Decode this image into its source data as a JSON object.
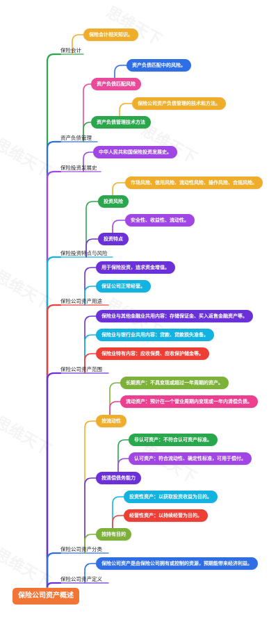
{
  "colors": {
    "orange": "#f27535",
    "yellow": "#eeae2c",
    "blue": "#2f6ee5",
    "pink": "#e94a9a",
    "green": "#2aa64d",
    "purple": "#a046e4",
    "violet": "#6a31d9",
    "cyan": "#14b2e0",
    "red": "#ee3f37",
    "lime": "#7db13a",
    "magenta": "#ec3f8f"
  },
  "root": {
    "label": "保险公司资产概述"
  },
  "watermark": "思维天下",
  "branches": {
    "kuaiji": {
      "label": "保险会计",
      "child": "保险会计相关知识。"
    },
    "fuzhai": {
      "label": "资产负债管理",
      "pipei": {
        "label": "资产负债匹配风险",
        "child": "资产负债匹配中的风险。"
      },
      "jishu": {
        "label": "资产负债管理技术方法",
        "child": "保险公司资产负债管理的技术和方法。"
      }
    },
    "fazhan": {
      "label": "保险投资发展史",
      "child": "中华人民共和国保险投资发展史。"
    },
    "tedian": {
      "label": "保险投资特点与风险",
      "fengxian": {
        "label": "投资风险",
        "child": "市场风险、信用风险、流动性风险、操作风险、合规风险。"
      },
      "tedian2": {
        "label": "投资特点",
        "child": "安全性、收益性、流动性。"
      }
    },
    "yongtu": {
      "label": "保险公司资产用途",
      "items": [
        "用于保险投资，追求资金增值。",
        "保证公司正常经营。"
      ]
    },
    "fanwei": {
      "label": "保险公司资产范围",
      "items": [
        "保险业与其他金融业共用内容：存储保证金、买入返售金融资产等。",
        "保险业与银行业共用内容：贷款、贷款损失准备。",
        "保险业特有内容：应收保费、应收保护储金等。"
      ]
    },
    "fenlei": {
      "label": "保险公司资产分类",
      "liudong": {
        "label": "按流动性",
        "items": [
          "长期资产：不具变现或超过一年周期的资产。",
          "流动资产：预计在一个营业周期内变现或一年内清偿负债。"
        ]
      },
      "qingchang": {
        "label": "按清偿债务能力",
        "items": [
          "非认可资产：不符合认可资产标准。",
          "认可资产：符合流动性、确定性标准，可用于偿付。"
        ]
      },
      "mudi": {
        "label": "按持有目的",
        "items": [
          "投资性资产：以获取投资收益为目的。",
          "经营性资产：以持续经营为目的。"
        ]
      }
    },
    "dingyi": {
      "label": "保险公司资产定义",
      "child": "保险公司资产是由保险公司拥有或控制的资源，预期能带来经济利益。"
    }
  }
}
